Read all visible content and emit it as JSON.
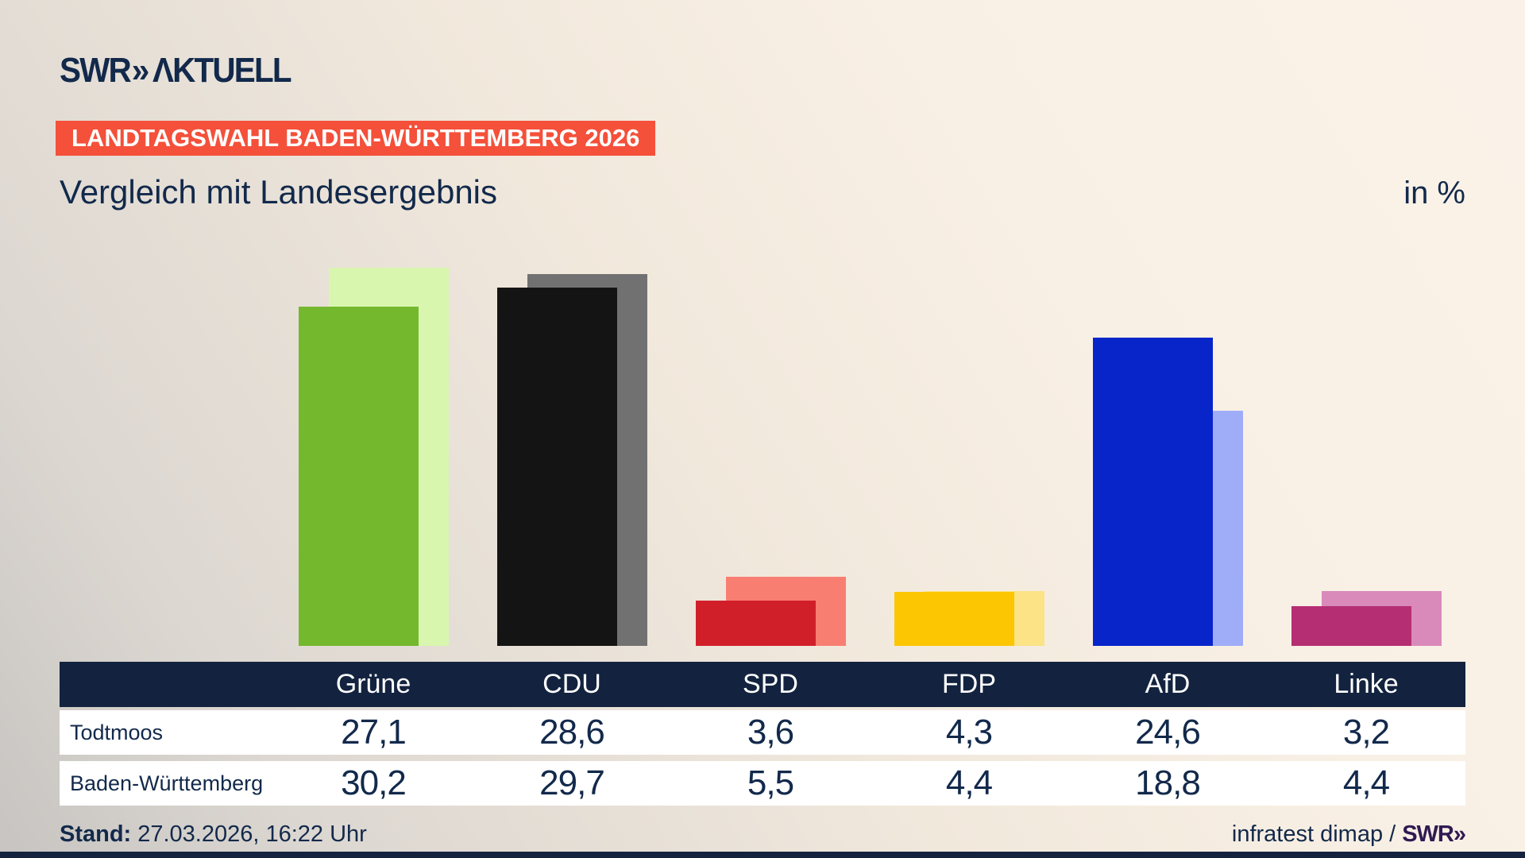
{
  "header": {
    "logo_swr": "SWR",
    "logo_chevrons": "»",
    "logo_aktuell": "ΛKTUELL",
    "banner": "LANDTAGSWAHL BADEN-WÜRTTEMBERG 2026",
    "title": "Vergleich mit Landesergebnis",
    "unit": "in %"
  },
  "chart_data": {
    "type": "bar",
    "categories": [
      "Grüne",
      "CDU",
      "SPD",
      "FDP",
      "AfD",
      "Linke"
    ],
    "series": [
      {
        "name": "Todtmoos",
        "values": [
          27.1,
          28.6,
          3.6,
          4.3,
          24.6,
          3.2
        ]
      },
      {
        "name": "Baden-Württemberg",
        "values": [
          30.2,
          29.7,
          5.5,
          4.4,
          18.8,
          4.4
        ]
      }
    ],
    "colors": {
      "front": [
        "#74b82d",
        "#141414",
        "#d11f2a",
        "#fdc602",
        "#0725c9",
        "#b52e74"
      ],
      "back": [
        "#d9f6af",
        "#717171",
        "#f97e72",
        "#fbe386",
        "#9fadf9",
        "#d98abb"
      ]
    },
    "title": "Vergleich mit Landesergebnis",
    "xlabel": "",
    "ylabel": "in %",
    "ylim": [
      0,
      30.4
    ],
    "grid": false,
    "legend_position": "table-below",
    "note": "front bar = Todtmoos, offset lighter back bar = Baden-Württemberg"
  },
  "table": {
    "columns": [
      "Grüne",
      "CDU",
      "SPD",
      "FDP",
      "AfD",
      "Linke"
    ],
    "rows": [
      {
        "label": "Todtmoos",
        "values": [
          "27,1",
          "28,6",
          "3,6",
          "4,3",
          "24,6",
          "3,2"
        ]
      },
      {
        "label": "Baden-Württemberg",
        "values": [
          "30,2",
          "29,7",
          "5,5",
          "4,4",
          "18,8",
          "4,4"
        ]
      }
    ]
  },
  "footer": {
    "stand_label": "Stand:",
    "stand_value": "27.03.2026, 16:22 Uhr",
    "source": "infratest dimap /",
    "brand": "SWR»"
  },
  "colors": {
    "background_cream": "#f9f0e5",
    "background_gray": "#c7c4c1",
    "navy_text": "#12294b",
    "table_header": "#13233f",
    "banner_red": "#f4503a",
    "bottom_strip": "#15233f",
    "brand_purple": "#301a52"
  }
}
